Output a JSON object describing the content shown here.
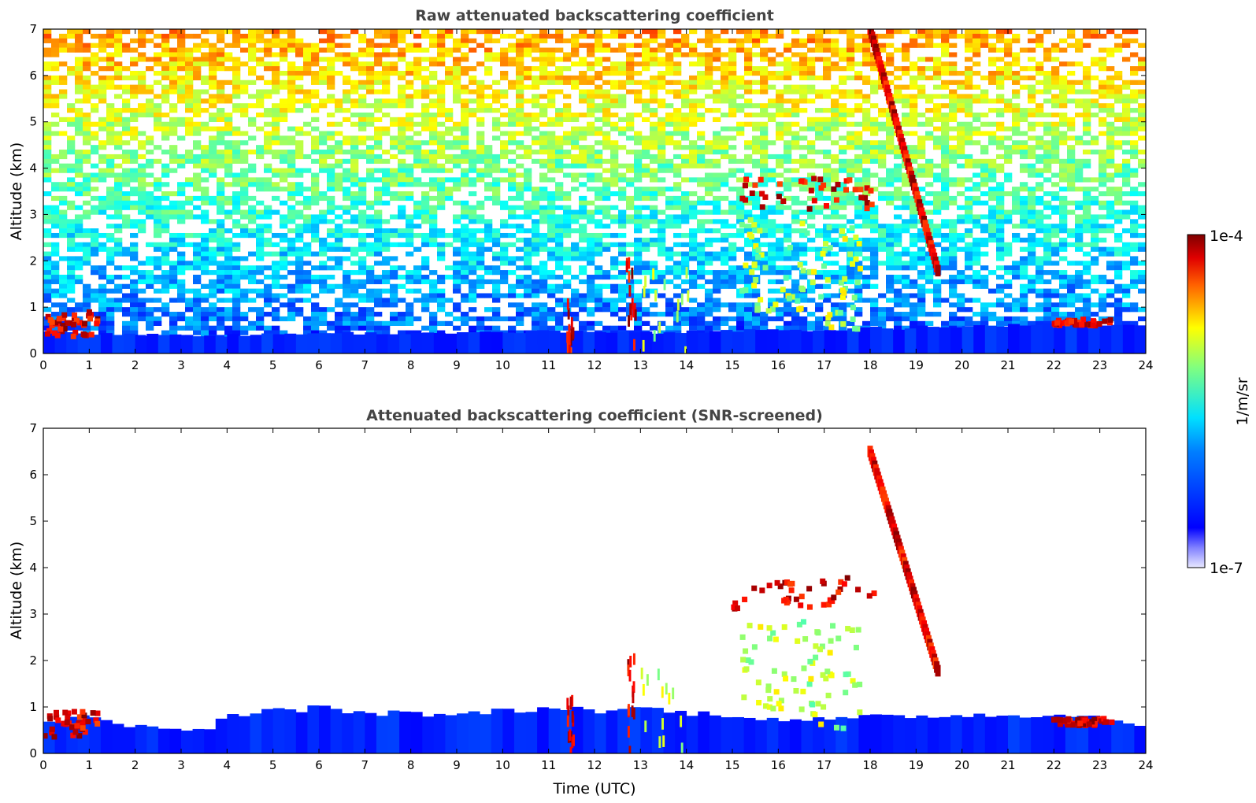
{
  "chart_data": [
    {
      "type": "heatmap",
      "title": "Raw attenuated backscattering coefficient",
      "xlabel": "",
      "ylabel": "Altitude (km)",
      "xlim": [
        0,
        24
      ],
      "ylim": [
        0,
        7
      ],
      "x_ticks": [
        "0",
        "1",
        "2",
        "3",
        "4",
        "5",
        "6",
        "7",
        "8",
        "9",
        "10",
        "11",
        "12",
        "13",
        "14",
        "15",
        "16",
        "17",
        "18",
        "19",
        "20",
        "21",
        "22",
        "23",
        "24"
      ],
      "y_ticks": [
        "0",
        "1",
        "2",
        "3",
        "4",
        "5",
        "6",
        "7"
      ],
      "noise_top_altitude_km": 7,
      "boundary_layer": [
        [
          0,
          0.5
        ],
        [
          1,
          0.45
        ],
        [
          3,
          0.4
        ],
        [
          4,
          0.4
        ],
        [
          6,
          0.45
        ],
        [
          9,
          0.45
        ],
        [
          11,
          0.5
        ],
        [
          13,
          0.45
        ],
        [
          15,
          0.5
        ],
        [
          16,
          0.5
        ],
        [
          18,
          0.55
        ],
        [
          20,
          0.6
        ],
        [
          22,
          0.7
        ],
        [
          23,
          0.65
        ],
        [
          24,
          0.6
        ]
      ],
      "features": [
        {
          "kind": "cloud",
          "x": [
            15.0,
            18.1
          ],
          "y": [
            3.1,
            3.8
          ],
          "intensity": "high"
        },
        {
          "kind": "precipitation",
          "x": [
            15.2,
            16.6
          ],
          "y": [
            0.9,
            2.9
          ],
          "intensity": "medium"
        },
        {
          "kind": "precipitation",
          "x": [
            16.6,
            17.8
          ],
          "y": [
            0.5,
            2.8
          ],
          "intensity": "medium"
        },
        {
          "kind": "cirrus_streak",
          "x": [
            18.0,
            19.5
          ],
          "y": [
            1.7,
            7.0
          ],
          "intensity": "high"
        },
        {
          "kind": "column",
          "x": [
            11.4,
            11.55
          ],
          "y": [
            0,
            1.2
          ],
          "intensity": "high"
        },
        {
          "kind": "column",
          "x": [
            12.7,
            12.9
          ],
          "y": [
            0,
            2.1
          ],
          "intensity": "high"
        },
        {
          "kind": "column",
          "x": [
            13.0,
            14.1
          ],
          "y": [
            0,
            1.8
          ],
          "intensity": "medium"
        },
        {
          "kind": "low_cloud",
          "x": [
            0,
            1.2
          ],
          "y": [
            0.35,
            0.9
          ],
          "intensity": "high"
        },
        {
          "kind": "low_cloud",
          "x": [
            22.0,
            23.3
          ],
          "y": [
            0.6,
            0.75
          ],
          "intensity": "high"
        }
      ]
    },
    {
      "type": "heatmap",
      "title": "Attenuated backscattering coefficient (SNR-screened)",
      "xlabel": "Time (UTC)",
      "ylabel": "Altitude (km)",
      "xlim": [
        0,
        24
      ],
      "ylim": [
        0,
        7
      ],
      "x_ticks": [
        "0",
        "1",
        "2",
        "3",
        "4",
        "5",
        "6",
        "7",
        "8",
        "9",
        "10",
        "11",
        "12",
        "13",
        "14",
        "15",
        "16",
        "17",
        "18",
        "19",
        "20",
        "21",
        "22",
        "23",
        "24"
      ],
      "y_ticks": [
        "0",
        "1",
        "2",
        "3",
        "4",
        "5",
        "6",
        "7"
      ],
      "boundary_layer": [
        [
          0,
          0.7
        ],
        [
          1,
          0.8
        ],
        [
          2,
          0.6
        ],
        [
          3.5,
          0.5
        ],
        [
          4,
          0.8
        ],
        [
          5,
          0.95
        ],
        [
          6,
          1.0
        ],
        [
          7,
          0.9
        ],
        [
          9,
          0.85
        ],
        [
          10,
          0.95
        ],
        [
          11,
          1.0
        ],
        [
          12,
          0.95
        ],
        [
          13,
          1.0
        ],
        [
          14,
          0.9
        ],
        [
          15,
          0.85
        ],
        [
          16,
          0.75
        ],
        [
          17,
          0.75
        ],
        [
          18,
          0.8
        ],
        [
          20,
          0.85
        ],
        [
          22,
          0.85
        ],
        [
          23,
          0.8
        ],
        [
          24,
          0.6
        ]
      ],
      "features": [
        {
          "kind": "cloud",
          "x": [
            15.0,
            18.1
          ],
          "y": [
            3.1,
            3.8
          ],
          "intensity": "high"
        },
        {
          "kind": "precipitation",
          "x": [
            15.2,
            16.6
          ],
          "y": [
            0.9,
            2.9
          ],
          "intensity": "medium"
        },
        {
          "kind": "precipitation",
          "x": [
            16.6,
            17.8
          ],
          "y": [
            0.5,
            2.8
          ],
          "intensity": "medium"
        },
        {
          "kind": "cirrus_streak",
          "x": [
            18.0,
            19.5
          ],
          "y": [
            1.7,
            6.5
          ],
          "intensity": "high"
        },
        {
          "kind": "column",
          "x": [
            11.4,
            11.55
          ],
          "y": [
            0,
            1.2
          ],
          "intensity": "high"
        },
        {
          "kind": "column",
          "x": [
            12.7,
            12.9
          ],
          "y": [
            0,
            2.1
          ],
          "intensity": "high"
        },
        {
          "kind": "column",
          "x": [
            13.0,
            14.1
          ],
          "y": [
            0,
            1.8
          ],
          "intensity": "medium"
        },
        {
          "kind": "low_cloud",
          "x": [
            0,
            1.2
          ],
          "y": [
            0.35,
            0.9
          ],
          "intensity": "high"
        },
        {
          "kind": "low_cloud",
          "x": [
            22.0,
            23.3
          ],
          "y": [
            0.6,
            0.75
          ],
          "intensity": "high"
        }
      ]
    }
  ],
  "colorbar": {
    "max_label": "1e-4",
    "min_label": "1e-7",
    "unit_label": "1/m/sr",
    "scale": "log",
    "colormap": "jet"
  },
  "colors": {
    "title": "#444444",
    "low": "#e6e6ff",
    "high": "#7f0000"
  }
}
